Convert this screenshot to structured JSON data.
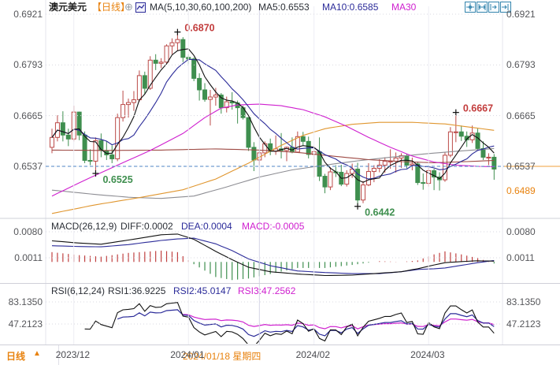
{
  "header": {
    "title": "澳元美元",
    "period_tag": "【日线】",
    "plus_icon": "⊕",
    "ma_group_label": "MA(5,10,30,60,100,200)",
    "ma5_label": "MA5:0.6553",
    "ma10_label": "MA10:0.6585",
    "ma30_label": "MA30"
  },
  "macd_legend": {
    "name": "MACD(26,12,9)",
    "diff": "DIFF:0.0002",
    "dea": "DEA:0.0004",
    "macd": "MACD:-0.0005"
  },
  "rsi_legend": {
    "name": "RSI(6,12,24)",
    "rsi1": "RSI1:36.9225",
    "rsi2": "RSI2:45.0147",
    "rsi3": "RSI3:47.2562"
  },
  "axes": {
    "main": [
      "0.6921",
      "0.6793",
      "0.6665",
      "0.6537"
    ],
    "main_right_extra": "0.6489",
    "macd": [
      "0.0080",
      "0.0011"
    ],
    "rsi": [
      "83.1350",
      "47.2123"
    ]
  },
  "bottom_bar": {
    "period": "日线",
    "arrow": "▲",
    "crosshair_date": "2024/01/18 星期四"
  },
  "colors": {
    "up": "#bb4a48",
    "down": "#3f8f4f",
    "ma5": "#111111",
    "ma10": "#2b2b99",
    "ma30": "#cf1fcf",
    "ma60": "#9e4a44",
    "ma100": "#e0962f",
    "ma200": "#8d8d93",
    "diff": "#111111",
    "dea": "#2b2b99",
    "hist_pos": "#c04040",
    "hist_neg": "#3f8f4f",
    "rsi1": "#111111",
    "rsi2": "#2b2b99",
    "rsi3": "#cf1fcf",
    "dashed_price": "#4f86c6",
    "price_tag_line": "#f0a13c",
    "grid_v": "#ededf4",
    "grid_dot": "#d8d8e0",
    "crosshair": "#d6d6e6",
    "annot_high": "#c23b3b",
    "annot_low": "#3f8f4f",
    "marker": "#111111"
  },
  "chart_data": {
    "type": "candlestick",
    "symbol": "澳元美元",
    "period": "日线",
    "y_axis_main": [
      0.6921,
      0.6793,
      0.6665,
      0.6537
    ],
    "macd_axis": [
      0.008,
      0.0011
    ],
    "rsi_axis": [
      83.135,
      47.2123
    ],
    "last_price_line": 0.6537,
    "crosshair_index": 38,
    "month_marks": [
      {
        "i": 4,
        "label": "2023/12"
      },
      {
        "i": 25,
        "label": "2024/01"
      },
      {
        "i": 48,
        "label": "2024/02"
      },
      {
        "i": 69,
        "label": "2024/03"
      }
    ],
    "annotations": [
      {
        "i": 23,
        "price": 0.687,
        "label": "0.6870",
        "side": "high"
      },
      {
        "i": 74,
        "price": 0.6667,
        "label": "0.6667",
        "side": "high"
      },
      {
        "i": 8,
        "price": 0.6525,
        "label": "0.6525",
        "side": "low"
      },
      {
        "i": 56,
        "price": 0.6442,
        "label": "0.6442",
        "side": "low"
      }
    ],
    "candles": [
      [
        0.6585,
        0.6632,
        0.657,
        0.661
      ],
      [
        0.661,
        0.6666,
        0.66,
        0.6647
      ],
      [
        0.6647,
        0.6676,
        0.66,
        0.6616
      ],
      [
        0.6616,
        0.6632,
        0.6588,
        0.6606
      ],
      [
        0.6606,
        0.669,
        0.66,
        0.6674
      ],
      [
        0.6674,
        0.6675,
        0.6603,
        0.6616
      ],
      [
        0.6616,
        0.6625,
        0.6545,
        0.6552
      ],
      [
        0.6552,
        0.658,
        0.654,
        0.655
      ],
      [
        0.655,
        0.661,
        0.6525,
        0.6602
      ],
      [
        0.6602,
        0.662,
        0.656,
        0.6577
      ],
      [
        0.6577,
        0.66,
        0.6553,
        0.6566
      ],
      [
        0.6566,
        0.659,
        0.6545,
        0.6556
      ],
      [
        0.6556,
        0.667,
        0.655,
        0.666
      ],
      [
        0.666,
        0.6728,
        0.665,
        0.6693
      ],
      [
        0.6693,
        0.6708,
        0.666,
        0.6698
      ],
      [
        0.6698,
        0.6727,
        0.6677,
        0.6705
      ],
      [
        0.6705,
        0.6779,
        0.67,
        0.6766
      ],
      [
        0.6766,
        0.6776,
        0.672,
        0.6734
      ],
      [
        0.6734,
        0.6815,
        0.673,
        0.6805
      ],
      [
        0.6805,
        0.682,
        0.678,
        0.6797
      ],
      [
        0.6797,
        0.681,
        0.6785,
        0.68
      ],
      [
        0.68,
        0.6845,
        0.6795,
        0.6841
      ],
      [
        0.6841,
        0.686,
        0.682,
        0.6849
      ],
      [
        0.6849,
        0.687,
        0.683,
        0.6857
      ],
      [
        0.6857,
        0.6863,
        0.68,
        0.6812
      ],
      [
        0.6812,
        0.682,
        0.6795,
        0.6808
      ],
      [
        0.6808,
        0.6812,
        0.6752,
        0.6759
      ],
      [
        0.6759,
        0.6772,
        0.6703,
        0.673
      ],
      [
        0.673,
        0.6747,
        0.67,
        0.6706
      ],
      [
        0.6706,
        0.673,
        0.664,
        0.6712
      ],
      [
        0.6712,
        0.6735,
        0.669,
        0.6717
      ],
      [
        0.6717,
        0.6722,
        0.667,
        0.6685
      ],
      [
        0.6685,
        0.6713,
        0.6673,
        0.67
      ],
      [
        0.67,
        0.6724,
        0.668,
        0.6697
      ],
      [
        0.6697,
        0.6703,
        0.6645,
        0.6685
      ],
      [
        0.6685,
        0.669,
        0.6655,
        0.666
      ],
      [
        0.666,
        0.6661,
        0.6576,
        0.6585
      ],
      [
        0.6585,
        0.6598,
        0.6525,
        0.6553
      ],
      [
        0.6553,
        0.6576,
        0.654,
        0.6571
      ],
      [
        0.6571,
        0.66,
        0.656,
        0.6594
      ],
      [
        0.6594,
        0.6607,
        0.6565,
        0.6575
      ],
      [
        0.6575,
        0.6615,
        0.6566,
        0.6581
      ],
      [
        0.6581,
        0.6621,
        0.6557,
        0.6577
      ],
      [
        0.6577,
        0.6587,
        0.655,
        0.6585
      ],
      [
        0.6585,
        0.661,
        0.657,
        0.6573
      ],
      [
        0.6573,
        0.6625,
        0.6571,
        0.6612
      ],
      [
        0.6612,
        0.6624,
        0.659,
        0.66
      ],
      [
        0.66,
        0.6612,
        0.6557,
        0.6567
      ],
      [
        0.6567,
        0.6588,
        0.6509,
        0.6574
      ],
      [
        0.6574,
        0.661,
        0.65,
        0.6512
      ],
      [
        0.6512,
        0.6518,
        0.6469,
        0.6485
      ],
      [
        0.6485,
        0.6535,
        0.6477,
        0.6523
      ],
      [
        0.6523,
        0.654,
        0.651,
        0.6522
      ],
      [
        0.6522,
        0.6541,
        0.6487,
        0.6492
      ],
      [
        0.6492,
        0.6527,
        0.6486,
        0.6519
      ],
      [
        0.6519,
        0.6544,
        0.6508,
        0.653
      ],
      [
        0.653,
        0.6546,
        0.6442,
        0.6452
      ],
      [
        0.6452,
        0.65,
        0.6444,
        0.649
      ],
      [
        0.649,
        0.6545,
        0.6487,
        0.6524
      ],
      [
        0.6524,
        0.654,
        0.6497,
        0.6532
      ],
      [
        0.6532,
        0.6555,
        0.6522,
        0.654
      ],
      [
        0.654,
        0.656,
        0.6521,
        0.655
      ],
      [
        0.655,
        0.658,
        0.6531,
        0.655
      ],
      [
        0.655,
        0.6572,
        0.6521,
        0.6558
      ],
      [
        0.6558,
        0.657,
        0.6533,
        0.6564
      ],
      [
        0.6564,
        0.6568,
        0.6532,
        0.654
      ],
      [
        0.654,
        0.6559,
        0.6527,
        0.6543
      ],
      [
        0.6543,
        0.6549,
        0.649,
        0.6496
      ],
      [
        0.6496,
        0.6519,
        0.6478,
        0.6494
      ],
      [
        0.6494,
        0.6535,
        0.6486,
        0.6526
      ],
      [
        0.6526,
        0.6531,
        0.6477,
        0.651
      ],
      [
        0.651,
        0.6522,
        0.6476,
        0.6503
      ],
      [
        0.6503,
        0.6573,
        0.6498,
        0.6565
      ],
      [
        0.6565,
        0.6636,
        0.656,
        0.6624
      ],
      [
        0.6624,
        0.6667,
        0.6598,
        0.6624
      ],
      [
        0.6624,
        0.664,
        0.6601,
        0.6613
      ],
      [
        0.6613,
        0.6625,
        0.6586,
        0.6604
      ],
      [
        0.6604,
        0.664,
        0.6596,
        0.6621
      ],
      [
        0.6621,
        0.6632,
        0.6577,
        0.6582
      ],
      [
        0.6582,
        0.66,
        0.6553,
        0.656
      ],
      [
        0.656,
        0.657,
        0.654,
        0.656
      ],
      [
        0.656,
        0.6568,
        0.6503,
        0.653
      ]
    ],
    "ma_computed_periods": {
      "ma5": 5,
      "ma10": 10
    },
    "ma_keyframes": {
      "ma30": [
        [
          0,
          0.6462
        ],
        [
          6,
          0.6502
        ],
        [
          12,
          0.654
        ],
        [
          18,
          0.6577
        ],
        [
          24,
          0.662
        ],
        [
          28,
          0.666
        ],
        [
          31,
          0.6684
        ],
        [
          34,
          0.6692
        ],
        [
          38,
          0.6694
        ],
        [
          42,
          0.669
        ],
        [
          46,
          0.668
        ],
        [
          50,
          0.6662
        ],
        [
          54,
          0.6638
        ],
        [
          58,
          0.661
        ],
        [
          62,
          0.6585
        ],
        [
          66,
          0.6563
        ],
        [
          70,
          0.6548
        ],
        [
          74,
          0.654
        ],
        [
          78,
          0.6537
        ],
        [
          81,
          0.6536
        ]
      ],
      "ma60": [
        [
          0,
          0.6578
        ],
        [
          10,
          0.6577
        ],
        [
          20,
          0.6578
        ],
        [
          30,
          0.6581
        ],
        [
          38,
          0.6578
        ],
        [
          45,
          0.6572
        ],
        [
          52,
          0.6562
        ],
        [
          58,
          0.6554
        ],
        [
          64,
          0.6549
        ],
        [
          70,
          0.6546
        ],
        [
          76,
          0.6549
        ],
        [
          81,
          0.6552
        ]
      ],
      "ma100": [
        [
          0,
          0.6418
        ],
        [
          8,
          0.644
        ],
        [
          16,
          0.6458
        ],
        [
          24,
          0.6478
        ],
        [
          30,
          0.6505
        ],
        [
          36,
          0.6545
        ],
        [
          42,
          0.659
        ],
        [
          46,
          0.6615
        ],
        [
          50,
          0.6632
        ],
        [
          55,
          0.6643
        ],
        [
          60,
          0.6648
        ],
        [
          66,
          0.6648
        ],
        [
          72,
          0.6644
        ],
        [
          81,
          0.6628
        ]
      ],
      "ma200": [
        [
          0,
          0.6477
        ],
        [
          8,
          0.6466
        ],
        [
          14,
          0.6459
        ],
        [
          20,
          0.6456
        ],
        [
          26,
          0.6462
        ],
        [
          32,
          0.6485
        ],
        [
          38,
          0.651
        ],
        [
          44,
          0.6528
        ],
        [
          50,
          0.654
        ],
        [
          56,
          0.6551
        ],
        [
          62,
          0.656
        ],
        [
          68,
          0.6568
        ],
        [
          74,
          0.6575
        ],
        [
          81,
          0.6582
        ]
      ]
    },
    "macd": {
      "diff_keyframes": [
        [
          0,
          0.0056
        ],
        [
          5,
          0.005
        ],
        [
          9,
          0.0047
        ],
        [
          14,
          0.0058
        ],
        [
          20,
          0.0072
        ],
        [
          23,
          0.0074
        ],
        [
          26,
          0.006
        ],
        [
          30,
          0.0028
        ],
        [
          33,
          0.0006
        ],
        [
          36,
          -0.0014
        ],
        [
          40,
          -0.0026
        ],
        [
          45,
          -0.0032
        ],
        [
          50,
          -0.0036
        ],
        [
          55,
          -0.0035
        ],
        [
          60,
          -0.003
        ],
        [
          64,
          -0.0026
        ],
        [
          67,
          -0.0018
        ],
        [
          70,
          -0.0008
        ],
        [
          72,
          -0.0002
        ],
        [
          75,
          0.0001
        ],
        [
          78,
          0.0003
        ],
        [
          81,
          0.0002
        ]
      ],
      "dea_keyframes": [
        [
          0,
          0.0043
        ],
        [
          5,
          0.0041
        ],
        [
          9,
          0.004
        ],
        [
          14,
          0.0046
        ],
        [
          20,
          0.0057
        ],
        [
          23,
          0.0061
        ],
        [
          26,
          0.0063
        ],
        [
          30,
          0.0048
        ],
        [
          33,
          0.003
        ],
        [
          36,
          0.0008
        ],
        [
          40,
          -0.001
        ],
        [
          45,
          -0.0024
        ],
        [
          50,
          -0.0028
        ],
        [
          55,
          -0.0031
        ],
        [
          60,
          -0.0031
        ],
        [
          64,
          -0.0026
        ],
        [
          67,
          -0.002
        ],
        [
          70,
          -0.0018
        ],
        [
          72,
          -0.0016
        ],
        [
          75,
          -0.0009
        ],
        [
          78,
          -0.0002
        ],
        [
          81,
          0.0004
        ]
      ]
    },
    "rsi_periods": [
      6,
      12,
      24
    ]
  }
}
